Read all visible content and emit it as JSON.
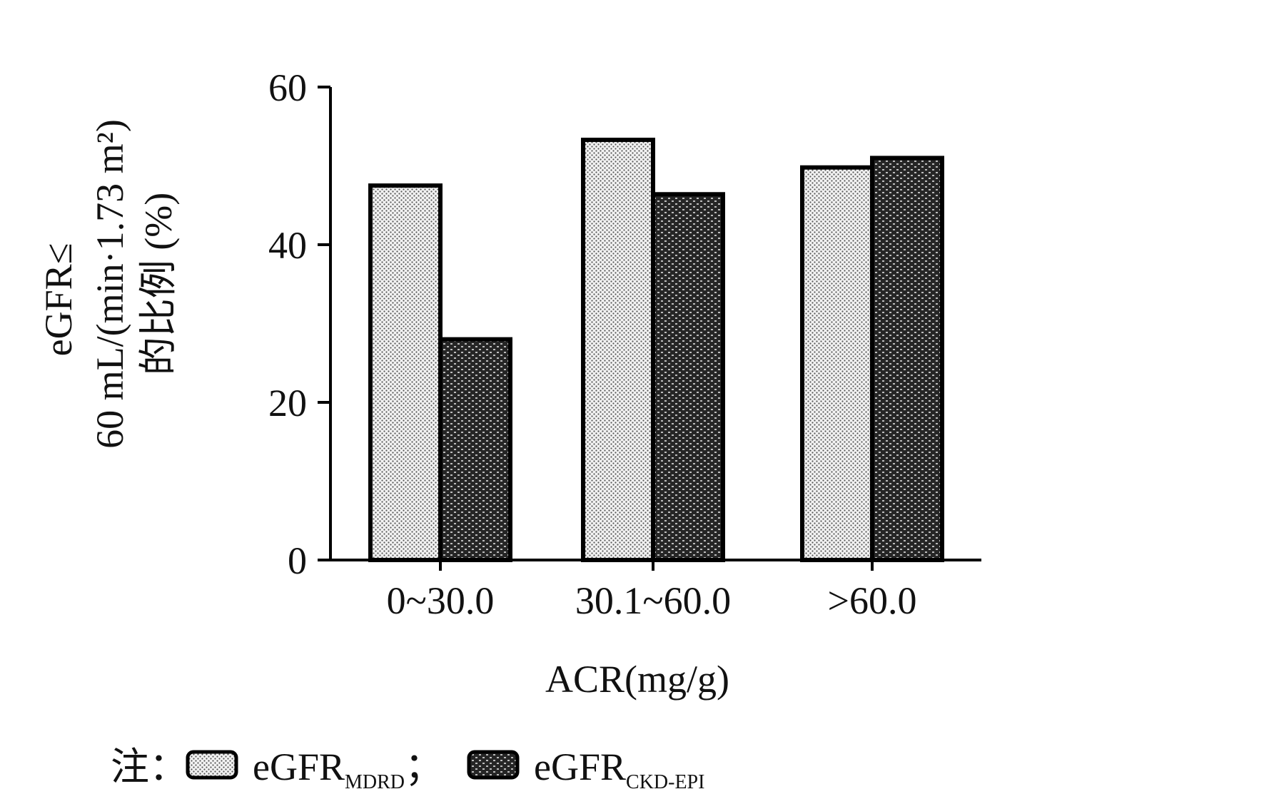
{
  "chart_data": {
    "type": "bar",
    "categories": [
      "0~30.0",
      "30.1~60.0",
      ">60.0"
    ],
    "series": [
      {
        "name_main": "eGFR",
        "name_sub": "MDRD",
        "values": [
          47.5,
          53.3,
          49.8
        ]
      },
      {
        "name_main": "eGFR",
        "name_sub": "CKD-EPI",
        "values": [
          28.0,
          46.4,
          51.0
        ]
      }
    ],
    "ylabel_lines": [
      "eGFR≤",
      "60 mL/(min·1.73 m²)",
      "的比例 (%)"
    ],
    "xlabel": "ACR(mg/g)",
    "ylim": [
      0,
      60
    ],
    "yticks": [
      "0",
      "20",
      "40",
      "60"
    ],
    "note_prefix": "注：",
    "legend_sep": "；",
    "colors": {
      "series1": "#cfcfcf",
      "series2": "#2b2b2b",
      "axis": "#000000"
    },
    "legend_placement": "bottom-left",
    "grid": false
  }
}
